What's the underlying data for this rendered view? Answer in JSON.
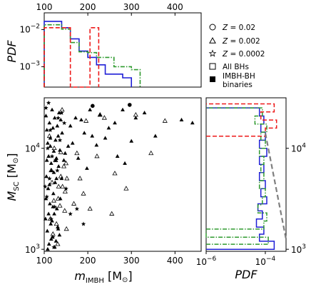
{
  "chart_data": [
    {
      "type": "histogram",
      "panel": "top",
      "ylabel": "PDF",
      "xlim": [
        100,
        460
      ],
      "ylim_log": [
        -3.55,
        -1.55
      ],
      "y_scale": "log",
      "xticks_top": [
        "100",
        "200",
        "300",
        "400"
      ],
      "yticks": [
        {
          "v": -2,
          "label": "10",
          "exp": "−2"
        },
        {
          "v": -3,
          "label": "10",
          "exp": "−3"
        }
      ],
      "series": [
        {
          "color": "#1f1fd6",
          "dash": "solid",
          "edges": [
            100,
            120,
            140,
            160,
            180,
            200,
            220,
            240,
            260,
            280,
            300
          ],
          "log_values": [
            -1.78,
            -1.78,
            -1.95,
            -2.25,
            -2.58,
            -2.75,
            -2.95,
            -3.2,
            -3.2,
            -3.3
          ]
        },
        {
          "color": "#2e9a2e",
          "dash": "dashdot",
          "edges": [
            100,
            120,
            140,
            160,
            180,
            200,
            220,
            240,
            260,
            280,
            300,
            320
          ],
          "log_values": [
            -1.87,
            -1.87,
            -1.99,
            -2.35,
            -2.6,
            -2.62,
            -2.75,
            -2.75,
            -3.0,
            -3.0,
            -3.08
          ]
        },
        {
          "color": "#ee1a1a",
          "dash": "dashed",
          "edges": [
            100,
            160,
            205,
            225
          ],
          "log_values": [
            -1.95,
            -3.6,
            -1.95
          ]
        }
      ]
    },
    {
      "type": "scatter",
      "panel": "main",
      "xlabel": "m_IMBH [M⊙]",
      "ylabel": "M_SC [M⊙]",
      "xlim": [
        100,
        460
      ],
      "ylim_log": [
        2.98,
        4.5
      ],
      "y_scale": "log",
      "xticks": [
        "100",
        "200",
        "300",
        "400"
      ],
      "yticks": [
        {
          "v": 3,
          "label": "10",
          "exp": "3"
        },
        {
          "v": 4,
          "label": "10",
          "exp": "4"
        }
      ],
      "series": [
        {
          "name": "All BHs",
          "marker": "open-triangle",
          "x": [
            142,
            150,
            168,
            175,
            182,
            190,
            196,
            205,
            221,
            228,
            238,
            255,
            262,
            288,
            310,
            345,
            377,
            114,
            120,
            132,
            138,
            145,
            151,
            118,
            126,
            136,
            148,
            112,
            123,
            131,
            147,
            138,
            128,
            141,
            116,
            133,
            152,
            122
          ],
          "y": [
            3.62,
            3.85,
            3.45,
            3.95,
            3.7,
            3.55,
            4.27,
            3.4,
            3.92,
            4.33,
            4.3,
            3.35,
            3.75,
            3.6,
            4.33,
            3.95,
            4.27,
            3.3,
            3.15,
            3.5,
            3.72,
            3.82,
            3.2,
            3.66,
            3.88,
            3.43,
            3.57,
            4.12,
            4.0,
            3.05,
            3.38,
            3.96,
            3.25,
            4.38,
            3.78,
            3.62,
            3.7,
            3.48
          ]
        },
        {
          "name": "IMBH-BH binaries",
          "marker": "filled-triangle",
          "x": [
            104,
            106,
            108,
            110,
            112,
            114,
            116,
            118,
            120,
            122,
            124,
            126,
            128,
            130,
            132,
            134,
            136,
            138,
            105,
            109,
            113,
            117,
            121,
            125,
            129,
            133,
            137,
            141,
            145,
            103,
            107,
            111,
            115,
            119,
            123,
            127,
            131,
            135,
            160,
            165,
            172,
            178,
            185,
            192,
            198,
            205,
            210,
            220,
            228,
            240,
            248,
            262,
            268,
            280,
            285,
            300,
            310,
            330,
            355,
            415,
            440,
            140,
            148,
            155,
            108,
            116,
            124,
            132,
            104,
            112,
            120,
            128,
            106,
            114,
            122,
            110,
            118
          ],
          "y": [
            4.32,
            4.18,
            4.05,
            3.92,
            4.25,
            4.1,
            3.85,
            4.38,
            4.2,
            3.97,
            4.3,
            4.08,
            3.9,
            4.22,
            4.12,
            4.35,
            3.98,
            4.28,
            3.72,
            3.6,
            3.45,
            3.78,
            3.55,
            3.66,
            3.4,
            3.82,
            3.5,
            4.15,
            3.88,
            3.3,
            3.18,
            3.05,
            3.25,
            3.12,
            3.35,
            3.08,
            3.22,
            3.14,
            4.22,
            4.05,
            4.3,
            3.9,
            4.28,
            4.15,
            3.8,
            4.38,
            4.12,
            4.03,
            4.33,
            4.1,
            4.2,
            4.25,
            3.92,
            4.38,
            3.85,
            4.07,
            4.3,
            4.35,
            4.12,
            4.28,
            4.25,
            3.7,
            3.95,
            4.02,
            3.0,
            3.1,
            3.02,
            3.2,
            3.5,
            3.64,
            3.42,
            3.7,
            3.88,
            4.02,
            3.76,
            3.35,
            3.28
          ]
        },
        {
          "name": "Z = 0.0002",
          "marker": "star",
          "x": [
            104,
            108,
            112,
            116,
            120,
            126,
            132,
            140,
            150,
            160,
            175,
            190,
            106,
            114,
            122,
            130,
            110,
            118,
            124,
            136,
            146,
            102
          ],
          "y": [
            4.4,
            4.0,
            3.7,
            3.3,
            3.12,
            3.88,
            4.3,
            4.35,
            3.6,
            3.35,
            3.4,
            3.25,
            3.52,
            4.18,
            3.02,
            3.78,
            4.45,
            3.92,
            3.42,
            4.08,
            4.25,
            3.62
          ]
        },
        {
          "name": "Z = 0.02",
          "marker": "filled-circle",
          "x": [
            211,
            296
          ],
          "y": [
            4.42,
            4.43
          ]
        }
      ]
    },
    {
      "type": "histogram-step",
      "panel": "right",
      "xlabel": "PDF",
      "xlim_log": [
        -6,
        -3.3
      ],
      "ylim_log": [
        2.98,
        4.5
      ],
      "xticks": [
        {
          "v": -6,
          "label": "10",
          "exp": "−6"
        },
        {
          "v": -4,
          "label": "10",
          "exp": "−4"
        }
      ],
      "yticks": [
        {
          "v": 3,
          "label": "10",
          "exp": "3"
        },
        {
          "v": 4,
          "label": "10",
          "exp": "4"
        }
      ],
      "series": [
        {
          "color": "#1f1fd6",
          "dash": "solid",
          "points": [
            [
              3.0,
              -6
            ],
            [
              3.0,
              -3.7
            ],
            [
              3.08,
              -3.7
            ],
            [
              3.08,
              -4.2
            ],
            [
              3.15,
              -4.2
            ],
            [
              3.15,
              -4.05
            ],
            [
              3.22,
              -4.05
            ],
            [
              3.22,
              -4.3
            ],
            [
              3.3,
              -4.3
            ],
            [
              3.3,
              -4.1
            ],
            [
              3.38,
              -4.1
            ],
            [
              3.38,
              -4.25
            ],
            [
              3.45,
              -4.25
            ],
            [
              3.45,
              -3.95
            ],
            [
              3.52,
              -3.95
            ],
            [
              3.52,
              -4.15
            ],
            [
              3.6,
              -4.15
            ],
            [
              3.6,
              -4.0
            ],
            [
              3.68,
              -4.0
            ],
            [
              3.68,
              -4.2
            ],
            [
              3.76,
              -4.2
            ],
            [
              3.76,
              -4.05
            ],
            [
              3.84,
              -4.05
            ],
            [
              3.84,
              -4.2
            ],
            [
              3.92,
              -4.2
            ],
            [
              3.92,
              -3.95
            ],
            [
              4.0,
              -3.95
            ],
            [
              4.0,
              -4.2
            ],
            [
              4.08,
              -4.2
            ],
            [
              4.08,
              -4.0
            ],
            [
              4.16,
              -4.0
            ],
            [
              4.16,
              -4.15
            ],
            [
              4.24,
              -4.15
            ],
            [
              4.24,
              -4.05
            ],
            [
              4.32,
              -4.05
            ],
            [
              4.32,
              -4.2
            ],
            [
              4.4,
              -4.2
            ],
            [
              4.4,
              -6
            ]
          ]
        },
        {
          "color": "#2e9a2e",
          "dash": "dashdot",
          "points": [
            [
              3.05,
              -6
            ],
            [
              3.05,
              -3.9
            ],
            [
              3.12,
              -3.9
            ],
            [
              3.12,
              -6
            ],
            [
              3.2,
              -6
            ],
            [
              3.2,
              -4.05
            ],
            [
              3.28,
              -4.05
            ],
            [
              3.28,
              -3.95
            ],
            [
              3.36,
              -3.95
            ],
            [
              3.36,
              -4.25
            ],
            [
              3.44,
              -4.25
            ],
            [
              3.44,
              -4.1
            ],
            [
              3.52,
              -4.1
            ],
            [
              3.52,
              -4.0
            ],
            [
              3.6,
              -4.0
            ],
            [
              3.6,
              -4.2
            ],
            [
              3.68,
              -4.2
            ],
            [
              3.68,
              -4.05
            ],
            [
              3.76,
              -4.05
            ],
            [
              3.76,
              -4.15
            ],
            [
              3.84,
              -4.15
            ],
            [
              3.84,
              -4.05
            ],
            [
              3.92,
              -4.05
            ],
            [
              3.92,
              -4.2
            ],
            [
              4.0,
              -4.2
            ],
            [
              4.0,
              -4.0
            ],
            [
              4.08,
              -4.0
            ],
            [
              4.08,
              -4.15
            ],
            [
              4.16,
              -4.15
            ],
            [
              4.16,
              -3.95
            ],
            [
              4.24,
              -3.95
            ],
            [
              4.24,
              -4.35
            ],
            [
              4.32,
              -4.35
            ],
            [
              4.32,
              -4.1
            ],
            [
              4.4,
              -4.1
            ],
            [
              4.4,
              -6
            ]
          ]
        },
        {
          "color": "#ee1a1a",
          "dash": "dashed",
          "points": [
            [
              4.12,
              -6
            ],
            [
              4.12,
              -4.0
            ],
            [
              4.2,
              -4.0
            ],
            [
              4.2,
              -3.62
            ],
            [
              4.28,
              -3.62
            ],
            [
              4.28,
              -4.15
            ],
            [
              4.36,
              -4.15
            ],
            [
              4.36,
              -3.7
            ],
            [
              4.44,
              -3.7
            ],
            [
              4.44,
              -6
            ]
          ]
        },
        {
          "color": "#7f7f7f",
          "dash": "dashed-thick",
          "kind": "line",
          "points": [
            [
              4.15,
              -4.0
            ],
            [
              3.1,
              -3.3
            ]
          ]
        }
      ]
    }
  ],
  "legend": {
    "items": [
      {
        "marker": "open-circle",
        "label": "Z = 0.02",
        "sym": "Z",
        "rest": " = 0.02"
      },
      {
        "marker": "open-triangle",
        "label": "Z = 0.002",
        "sym": "Z",
        "rest": " = 0.002"
      },
      {
        "marker": "open-star",
        "label": "Z = 0.0002",
        "sym": "Z",
        "rest": " = 0.0002"
      },
      {
        "marker": "open-square",
        "label": "All BHs"
      },
      {
        "marker": "filled-square",
        "label": "IMBH-BH binaries",
        "lines": [
          "IMBH-BH",
          "binaries"
        ]
      }
    ]
  },
  "labels": {
    "top_ylabel": "PDF",
    "main_xlabel_sym": "m",
    "main_xlabel_sub": "IMBH",
    "main_xlabel_unit": " [M",
    "main_xlabel_odot": "⊙",
    "main_xlabel_close": "]",
    "main_ylabel_sym": "M",
    "main_ylabel_sub": "SC",
    "main_ylabel_unit": " [M",
    "main_ylabel_odot": "⊙",
    "main_ylabel_close": "]",
    "right_xlabel": "PDF"
  }
}
